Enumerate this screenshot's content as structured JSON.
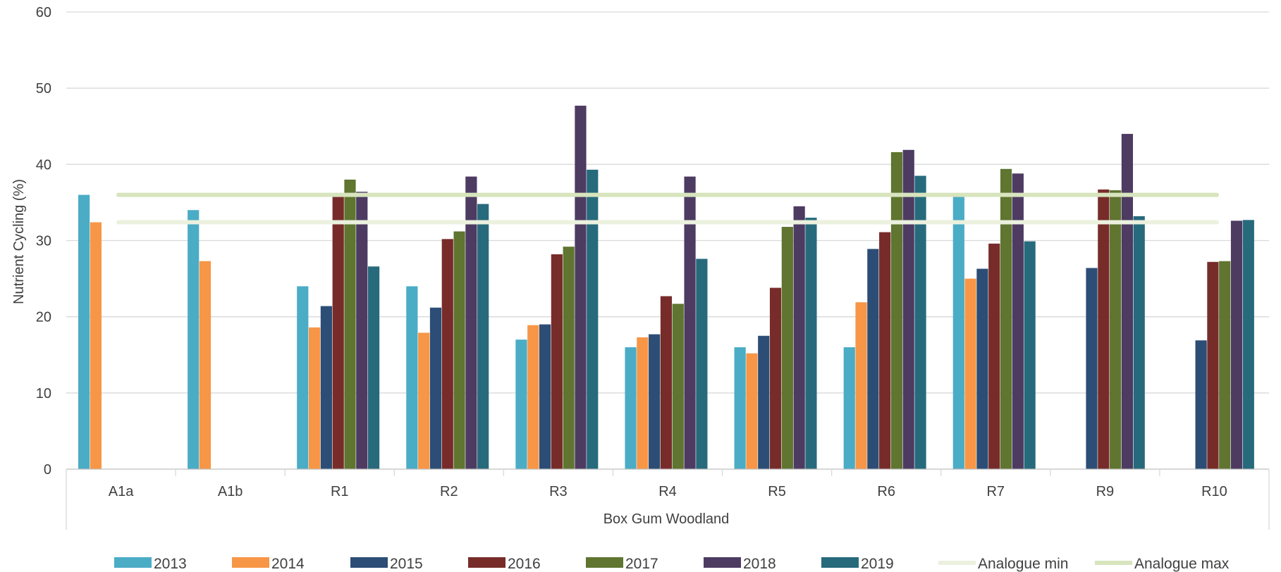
{
  "chart_data": {
    "type": "bar",
    "ylabel": "Nutrient Cycling (%)",
    "group_label": "Box Gum Woodland",
    "categories": [
      "A1a",
      "A1b",
      "R1",
      "R2",
      "R3",
      "R4",
      "R5",
      "R6",
      "R7",
      "R9",
      "R10"
    ],
    "ylim": [
      0,
      60
    ],
    "yticks": [
      0,
      10,
      20,
      30,
      40,
      50,
      60
    ],
    "ytick_labels": [
      "0",
      "10",
      "20",
      "30",
      "40",
      "50",
      "60"
    ],
    "grid": true,
    "legend_position": "bottom",
    "series": [
      {
        "name": "2013",
        "color": "#4BACC6",
        "values": [
          36,
          34,
          24,
          24,
          17,
          16,
          16,
          16,
          36,
          null,
          null
        ]
      },
      {
        "name": "2014",
        "color": "#F79646",
        "values": [
          32.4,
          27.3,
          18.6,
          17.9,
          18.9,
          17.3,
          15.2,
          21.9,
          25,
          null,
          null
        ]
      },
      {
        "name": "2015",
        "color": "#2C4D75",
        "values": [
          null,
          null,
          21.4,
          21.2,
          19,
          17.7,
          17.5,
          28.9,
          26.3,
          26.4,
          16.9
        ]
      },
      {
        "name": "2016",
        "color": "#772C2A",
        "values": [
          null,
          null,
          35.8,
          30.2,
          28.2,
          22.7,
          23.8,
          31.1,
          29.6,
          36.7,
          27.2
        ]
      },
      {
        "name": "2017",
        "color": "#5F7530",
        "values": [
          null,
          null,
          38,
          31.2,
          29.2,
          21.7,
          31.8,
          41.6,
          39.4,
          36.6,
          27.3
        ]
      },
      {
        "name": "2018",
        "color": "#4D3B62",
        "values": [
          null,
          null,
          36.4,
          38.4,
          47.7,
          38.4,
          34.5,
          41.9,
          38.8,
          44,
          32.6
        ]
      },
      {
        "name": "2019",
        "color": "#276A7C",
        "values": [
          null,
          null,
          26.6,
          34.8,
          39.3,
          27.6,
          33,
          38.5,
          29.9,
          33.2,
          32.7
        ]
      }
    ],
    "reference_lines": [
      {
        "name": "Analogue min",
        "color": "#EBF1DE",
        "value": 32.4
      },
      {
        "name": "Analogue max",
        "color": "#D7E4BD",
        "value": 36
      }
    ]
  }
}
